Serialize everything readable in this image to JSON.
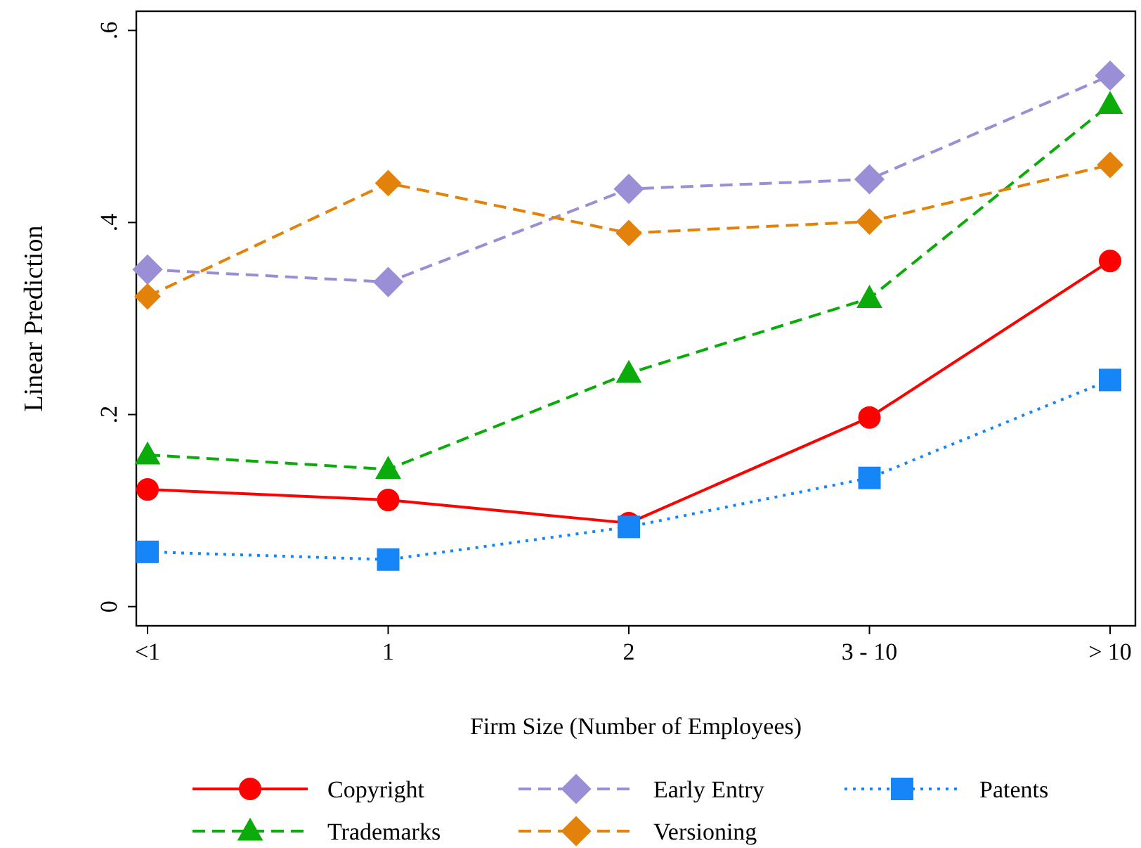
{
  "chart_data": {
    "type": "line",
    "xlabel": "Firm Size (Number of Employees)",
    "ylabel": "Linear Prediction",
    "categories": [
      "<1",
      "1",
      "2",
      "3 - 10",
      "> 10"
    ],
    "ylim": [
      -0.02,
      0.62
    ],
    "yticks": [
      {
        "value": 0,
        "label": "0"
      },
      {
        "value": 0.2,
        "label": ".2"
      },
      {
        "value": 0.4,
        "label": ".4"
      },
      {
        "value": 0.6,
        "label": ".6"
      }
    ],
    "grid": false,
    "legend": "bottom",
    "series": [
      {
        "name": "Copyright",
        "color": "#ff0000",
        "marker": "circle",
        "line_style": "solid",
        "values": [
          0.122,
          0.111,
          0.087,
          0.197,
          0.36
        ]
      },
      {
        "name": "Early Entry",
        "color": "#9a8fd6",
        "marker": "diamond",
        "line_style": "dashed",
        "values": [
          0.351,
          0.338,
          0.435,
          0.445,
          0.553
        ]
      },
      {
        "name": "Patents",
        "color": "#1685f8",
        "marker": "square",
        "line_style": "dotted",
        "values": [
          0.057,
          0.049,
          0.083,
          0.134,
          0.236
        ]
      },
      {
        "name": "Trademarks",
        "color": "#0aab0a",
        "marker": "triangle",
        "line_style": "dashed",
        "values": [
          0.158,
          0.143,
          0.243,
          0.321,
          0.523
        ]
      },
      {
        "name": "Versioning",
        "color": "#e3820b",
        "marker": "diamond",
        "line_style": "dashed",
        "values": [
          0.323,
          0.441,
          0.389,
          0.401,
          0.46
        ]
      }
    ]
  }
}
